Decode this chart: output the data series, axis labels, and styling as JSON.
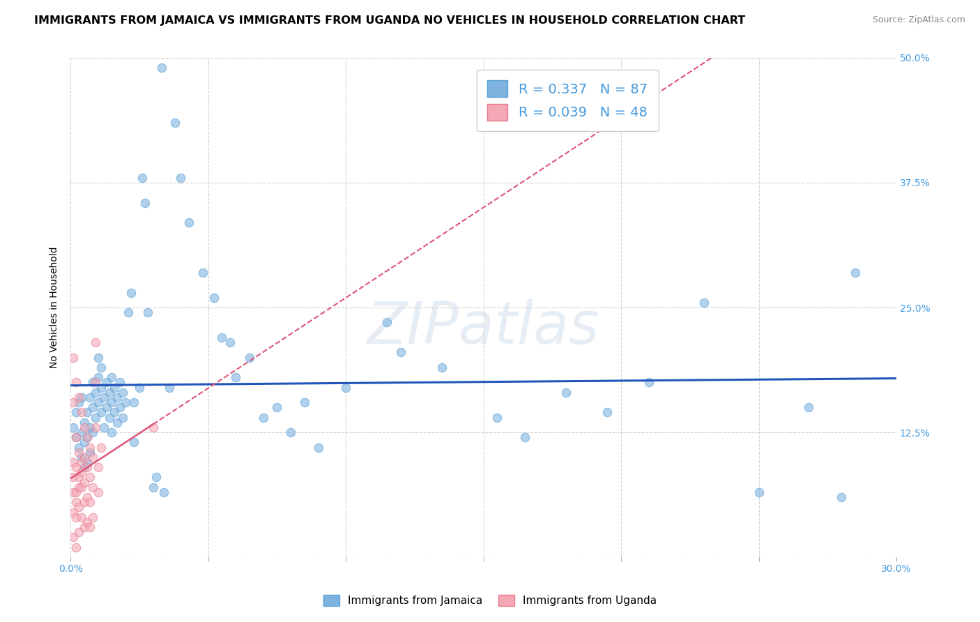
{
  "title": "IMMIGRANTS FROM JAMAICA VS IMMIGRANTS FROM UGANDA NO VEHICLES IN HOUSEHOLD CORRELATION CHART",
  "source": "Source: ZipAtlas.com",
  "ylabel_label": "No Vehicles in Household",
  "xlim": [
    0.0,
    0.3
  ],
  "ylim": [
    0.0,
    0.5
  ],
  "xtick_vals": [
    0.0,
    0.05,
    0.1,
    0.15,
    0.2,
    0.25,
    0.3
  ],
  "ytick_vals": [
    0.0,
    0.125,
    0.25,
    0.375,
    0.5
  ],
  "grid_color": "#cccccc",
  "background_color": "#ffffff",
  "jamaica_color": "#7eb3e0",
  "jamaica_edge_color": "#5a9fd4",
  "uganda_color": "#f4a7b4",
  "uganda_edge_color": "#e87a8f",
  "jamaica_line_color": "#2255bb",
  "uganda_line_color": "#dd5577",
  "jamaica_R": 0.337,
  "jamaica_N": 87,
  "uganda_R": 0.039,
  "uganda_N": 48,
  "legend_label_jamaica": "Immigrants from Jamaica",
  "legend_label_uganda": "Immigrants from Uganda",
  "jamaica_scatter": [
    [
      0.001,
      0.13
    ],
    [
      0.002,
      0.12
    ],
    [
      0.002,
      0.145
    ],
    [
      0.003,
      0.11
    ],
    [
      0.003,
      0.155
    ],
    [
      0.004,
      0.125
    ],
    [
      0.004,
      0.1
    ],
    [
      0.004,
      0.16
    ],
    [
      0.005,
      0.135
    ],
    [
      0.005,
      0.115
    ],
    [
      0.005,
      0.09
    ],
    [
      0.006,
      0.145
    ],
    [
      0.006,
      0.12
    ],
    [
      0.006,
      0.095
    ],
    [
      0.007,
      0.16
    ],
    [
      0.007,
      0.13
    ],
    [
      0.007,
      0.105
    ],
    [
      0.008,
      0.15
    ],
    [
      0.008,
      0.125
    ],
    [
      0.008,
      0.175
    ],
    [
      0.009,
      0.165
    ],
    [
      0.009,
      0.14
    ],
    [
      0.01,
      0.18
    ],
    [
      0.01,
      0.155
    ],
    [
      0.01,
      0.2
    ],
    [
      0.011,
      0.19
    ],
    [
      0.011,
      0.17
    ],
    [
      0.011,
      0.145
    ],
    [
      0.012,
      0.16
    ],
    [
      0.012,
      0.13
    ],
    [
      0.013,
      0.175
    ],
    [
      0.013,
      0.15
    ],
    [
      0.014,
      0.165
    ],
    [
      0.014,
      0.14
    ],
    [
      0.015,
      0.18
    ],
    [
      0.015,
      0.155
    ],
    [
      0.015,
      0.125
    ],
    [
      0.016,
      0.17
    ],
    [
      0.016,
      0.145
    ],
    [
      0.017,
      0.16
    ],
    [
      0.017,
      0.135
    ],
    [
      0.018,
      0.175
    ],
    [
      0.018,
      0.15
    ],
    [
      0.019,
      0.165
    ],
    [
      0.019,
      0.14
    ],
    [
      0.02,
      0.155
    ],
    [
      0.021,
      0.245
    ],
    [
      0.022,
      0.265
    ],
    [
      0.023,
      0.155
    ],
    [
      0.023,
      0.115
    ],
    [
      0.025,
      0.17
    ],
    [
      0.026,
      0.38
    ],
    [
      0.027,
      0.355
    ],
    [
      0.028,
      0.245
    ],
    [
      0.03,
      0.07
    ],
    [
      0.031,
      0.08
    ],
    [
      0.033,
      0.49
    ],
    [
      0.034,
      0.065
    ],
    [
      0.036,
      0.17
    ],
    [
      0.038,
      0.435
    ],
    [
      0.04,
      0.38
    ],
    [
      0.043,
      0.335
    ],
    [
      0.048,
      0.285
    ],
    [
      0.052,
      0.26
    ],
    [
      0.055,
      0.22
    ],
    [
      0.058,
      0.215
    ],
    [
      0.06,
      0.18
    ],
    [
      0.065,
      0.2
    ],
    [
      0.07,
      0.14
    ],
    [
      0.075,
      0.15
    ],
    [
      0.08,
      0.125
    ],
    [
      0.085,
      0.155
    ],
    [
      0.09,
      0.11
    ],
    [
      0.1,
      0.17
    ],
    [
      0.115,
      0.235
    ],
    [
      0.12,
      0.205
    ],
    [
      0.135,
      0.19
    ],
    [
      0.155,
      0.14
    ],
    [
      0.165,
      0.12
    ],
    [
      0.18,
      0.165
    ],
    [
      0.195,
      0.145
    ],
    [
      0.21,
      0.175
    ],
    [
      0.23,
      0.255
    ],
    [
      0.25,
      0.065
    ],
    [
      0.268,
      0.15
    ],
    [
      0.28,
      0.06
    ],
    [
      0.285,
      0.285
    ]
  ],
  "uganda_scatter": [
    [
      0.001,
      0.2
    ],
    [
      0.001,
      0.155
    ],
    [
      0.001,
      0.095
    ],
    [
      0.001,
      0.065
    ],
    [
      0.001,
      0.045
    ],
    [
      0.001,
      0.02
    ],
    [
      0.001,
      0.08
    ],
    [
      0.002,
      0.175
    ],
    [
      0.002,
      0.12
    ],
    [
      0.002,
      0.09
    ],
    [
      0.002,
      0.065
    ],
    [
      0.002,
      0.04
    ],
    [
      0.002,
      0.01
    ],
    [
      0.002,
      0.055
    ],
    [
      0.003,
      0.16
    ],
    [
      0.003,
      0.105
    ],
    [
      0.003,
      0.08
    ],
    [
      0.003,
      0.05
    ],
    [
      0.003,
      0.025
    ],
    [
      0.003,
      0.07
    ],
    [
      0.004,
      0.145
    ],
    [
      0.004,
      0.095
    ],
    [
      0.004,
      0.07
    ],
    [
      0.004,
      0.04
    ],
    [
      0.004,
      0.085
    ],
    [
      0.005,
      0.13
    ],
    [
      0.005,
      0.1
    ],
    [
      0.005,
      0.055
    ],
    [
      0.005,
      0.03
    ],
    [
      0.005,
      0.075
    ],
    [
      0.006,
      0.12
    ],
    [
      0.006,
      0.09
    ],
    [
      0.006,
      0.06
    ],
    [
      0.006,
      0.035
    ],
    [
      0.007,
      0.11
    ],
    [
      0.007,
      0.08
    ],
    [
      0.007,
      0.055
    ],
    [
      0.007,
      0.03
    ],
    [
      0.008,
      0.1
    ],
    [
      0.008,
      0.07
    ],
    [
      0.008,
      0.04
    ],
    [
      0.009,
      0.215
    ],
    [
      0.009,
      0.175
    ],
    [
      0.009,
      0.13
    ],
    [
      0.01,
      0.09
    ],
    [
      0.01,
      0.065
    ],
    [
      0.011,
      0.11
    ],
    [
      0.03,
      0.13
    ]
  ],
  "title_fontsize": 11.5,
  "axis_fontsize": 10,
  "tick_fontsize": 10,
  "legend_fontsize": 14,
  "watermark_text": "ZIPatlas",
  "tick_label_color": "#4499dd"
}
